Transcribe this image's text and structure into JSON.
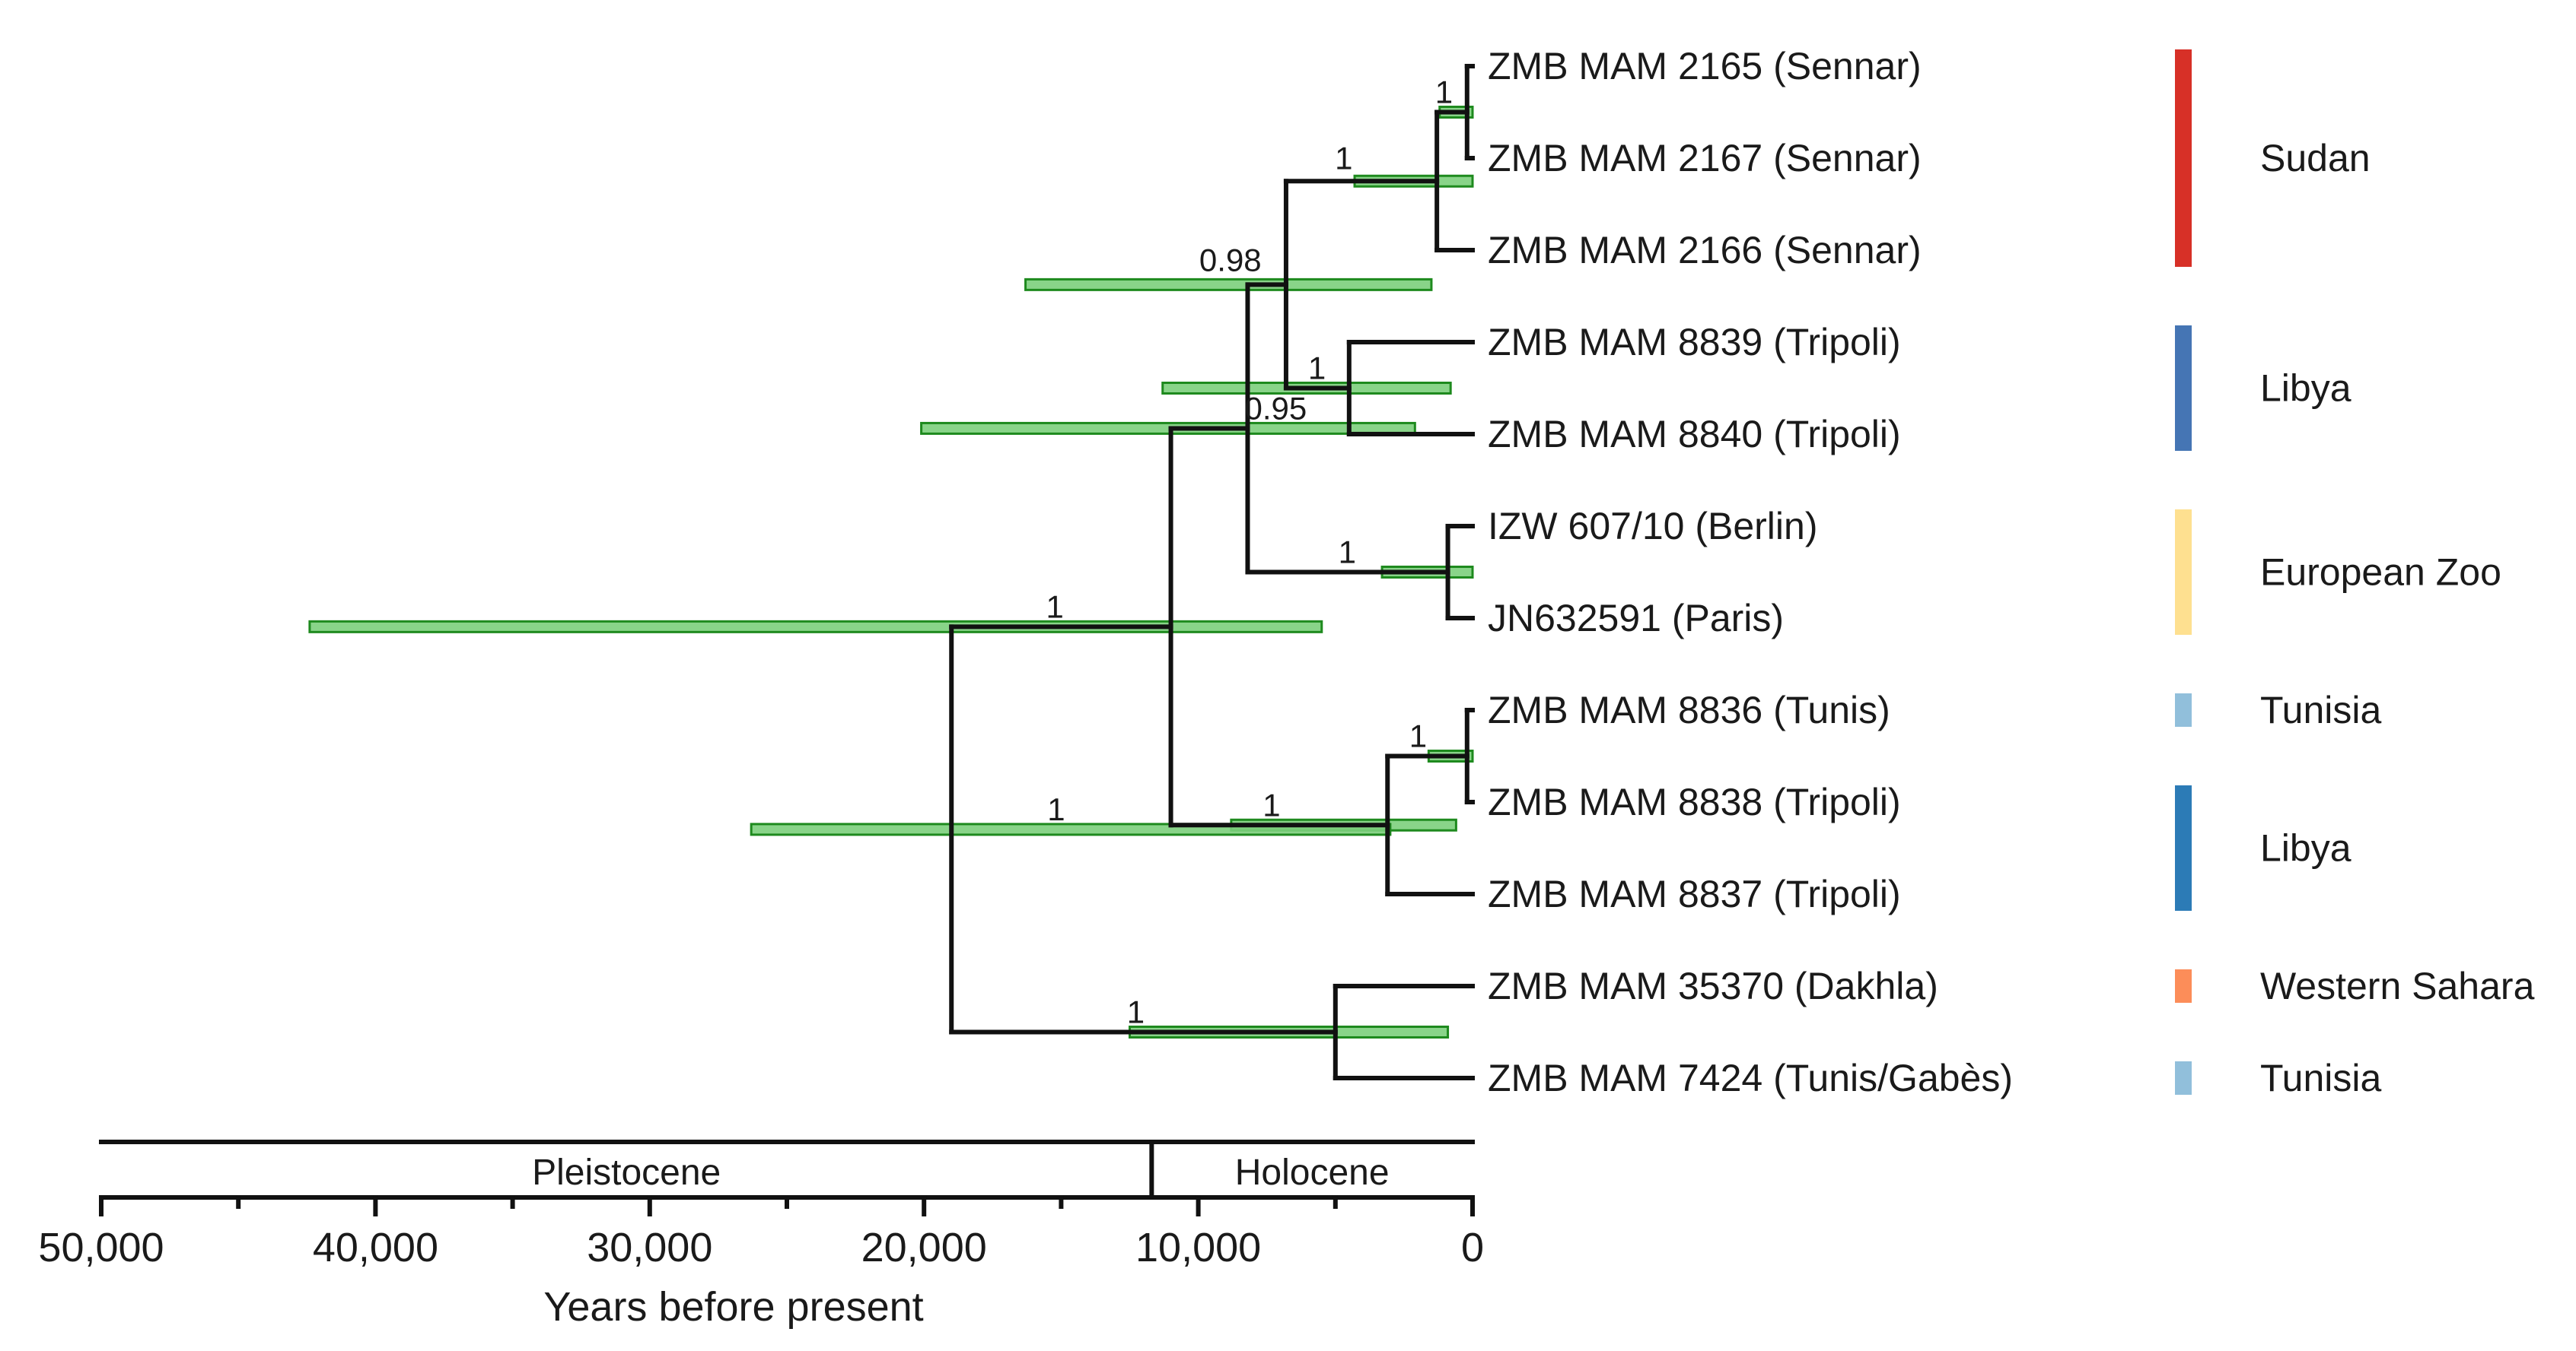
{
  "chart_data": {
    "type": "tree",
    "xlabel": "Years before present",
    "x_range": [
      50000,
      0
    ],
    "x_ticks": [
      50000,
      40000,
      30000,
      20000,
      10000,
      0
    ],
    "x_tick_labels": [
      "50,000",
      "40,000",
      "30,000",
      "20,000",
      "10,000",
      "0"
    ],
    "epochs": [
      {
        "name": "Pleistocene",
        "from": 50000,
        "to": 11700
      },
      {
        "name": "Holocene",
        "from": 11700,
        "to": 0
      }
    ],
    "tips": [
      {
        "label": "ZMB MAM 2165 (Sennar)",
        "row": 0
      },
      {
        "label": "ZMB MAM 2167 (Sennar)",
        "row": 1
      },
      {
        "label": "ZMB MAM 2166 (Sennar)",
        "row": 2
      },
      {
        "label": "ZMB MAM 8839 (Tripoli)",
        "row": 3
      },
      {
        "label": "ZMB MAM 8840 (Tripoli)",
        "row": 4
      },
      {
        "label": "IZW 607/10 (Berlin)",
        "row": 5
      },
      {
        "label": "JN632591 (Paris)",
        "row": 6
      },
      {
        "label": "ZMB MAM 8836 (Tunis)",
        "row": 7
      },
      {
        "label": "ZMB MAM 8838 (Tripoli)",
        "row": 8
      },
      {
        "label": "ZMB MAM 8837 (Tripoli)",
        "row": 9
      },
      {
        "label": "ZMB MAM 35370 (Dakhla)",
        "row": 10
      },
      {
        "label": "ZMB MAM 7424 (Tunis/Gabès)",
        "row": 11
      }
    ],
    "nodes": [
      {
        "id": "n2165_2167",
        "age": 200,
        "support": "1",
        "children": [
          0,
          1
        ],
        "hpd": [
          1200,
          0
        ]
      },
      {
        "id": "sennar",
        "age": 1300,
        "support": "1",
        "children": [
          "n2165_2167",
          2
        ],
        "hpd": [
          4300,
          0
        ]
      },
      {
        "id": "tripoli_a",
        "age": 4500,
        "support": "1",
        "children": [
          3,
          4
        ],
        "hpd": [
          11300,
          800
        ]
      },
      {
        "id": "sudan_libya",
        "age": 6800,
        "support": "0.98",
        "children": [
          "sennar",
          "tripoli_a"
        ],
        "hpd": [
          16300,
          1500
        ]
      },
      {
        "id": "zoo",
        "age": 900,
        "support": "1",
        "children": [
          5,
          6
        ],
        "hpd": [
          3300,
          0
        ]
      },
      {
        "id": "clade_a",
        "age": 8200,
        "support": "0.95",
        "children": [
          "sudan_libya",
          "zoo"
        ],
        "hpd": [
          20100,
          2100
        ]
      },
      {
        "id": "tunis_tripoli",
        "age": 200,
        "support": "1",
        "children": [
          7,
          8
        ],
        "hpd": [
          1600,
          0
        ]
      },
      {
        "id": "clade_b",
        "age": 3100,
        "support": "1",
        "children": [
          "tunis_tripoli",
          9
        ],
        "hpd": [
          8800,
          600
        ]
      },
      {
        "id": "ab",
        "age": 11000,
        "support": "1",
        "children": [
          "clade_a",
          "clade_b"
        ],
        "hpd": [
          42400,
          5500
        ]
      },
      {
        "id": "dakhla_tunis",
        "age": 5000,
        "support": "1",
        "children": [
          10,
          11
        ],
        "hpd": [
          12500,
          900
        ]
      },
      {
        "id": "root",
        "age": 19000,
        "support": "1",
        "children": [
          "ab",
          "dakhla_tunis"
        ],
        "hpd": [
          26300,
          3000
        ]
      }
    ],
    "regions": [
      {
        "name": "Sudan",
        "rows": [
          0,
          2
        ],
        "color": "#d73027"
      },
      {
        "name": "Libya",
        "rows": [
          3,
          4
        ],
        "color": "#4575b4"
      },
      {
        "name": "European Zoo",
        "rows": [
          5,
          6
        ],
        "color": "#fee090"
      },
      {
        "name": "Tunisia",
        "rows": [
          7,
          7
        ],
        "color": "#91bfdb"
      },
      {
        "name": "Libya",
        "rows": [
          8,
          9
        ],
        "color": "#2c7bb6"
      },
      {
        "name": "Western Sahara",
        "rows": [
          10,
          10
        ],
        "color": "#fc8d59"
      },
      {
        "name": "Tunisia",
        "rows": [
          11,
          11
        ],
        "color": "#91bfdb"
      }
    ]
  }
}
